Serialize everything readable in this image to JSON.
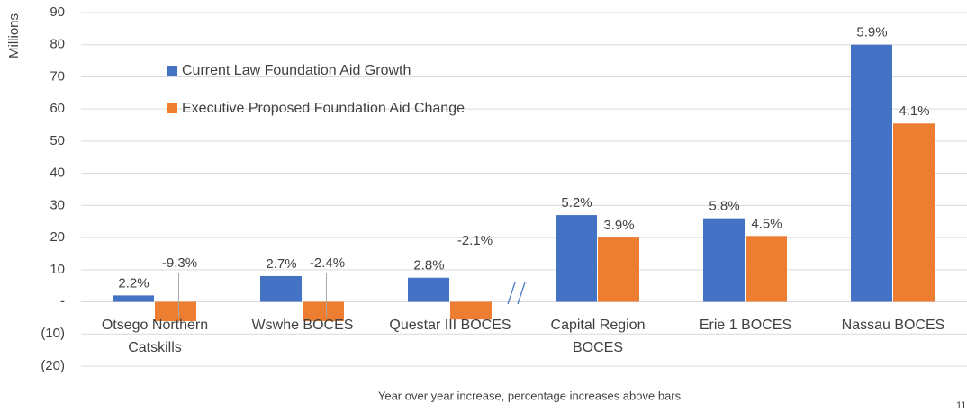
{
  "chart_data": {
    "type": "bar",
    "y_axis_label": "Millions",
    "x_axis_label": "Year over year increase, percentage increases above bars",
    "page_number": "11",
    "categories": [
      [
        "Otsego Northern",
        "Catskills"
      ],
      [
        "Wswhe BOCES"
      ],
      [
        "Questar III BOCES"
      ],
      [
        "Capital Region",
        "BOCES"
      ],
      [
        "Erie 1 BOCES"
      ],
      [
        "Nassau BOCES"
      ]
    ],
    "series": [
      {
        "name": "Current Law Foundation Aid Growth",
        "color": "#4472c4",
        "values": [
          2,
          8,
          7.5,
          27,
          26,
          80
        ],
        "percent_labels": [
          "2.2%",
          "2.7%",
          "2.8%",
          "5.2%",
          "5.8%",
          "5.9%"
        ]
      },
      {
        "name": "Executive Proposed Foundation Aid Change",
        "color": "#ed7d31",
        "values": [
          -6,
          -6,
          -5.5,
          20,
          20.5,
          55.5
        ],
        "percent_labels": [
          "-9.3%",
          "-2.4%",
          "-2.1%",
          "3.9%",
          "4.5%",
          "4.1%"
        ]
      }
    ],
    "ylim": [
      -20,
      90
    ],
    "yticks": [
      {
        "value": -20,
        "label": "(20)"
      },
      {
        "value": -10,
        "label": "(10)"
      },
      {
        "value": 0,
        "label": "-"
      },
      10,
      20,
      30,
      40,
      50,
      60,
      70,
      80,
      90
    ],
    "grid": true,
    "legend": "upper-left"
  }
}
